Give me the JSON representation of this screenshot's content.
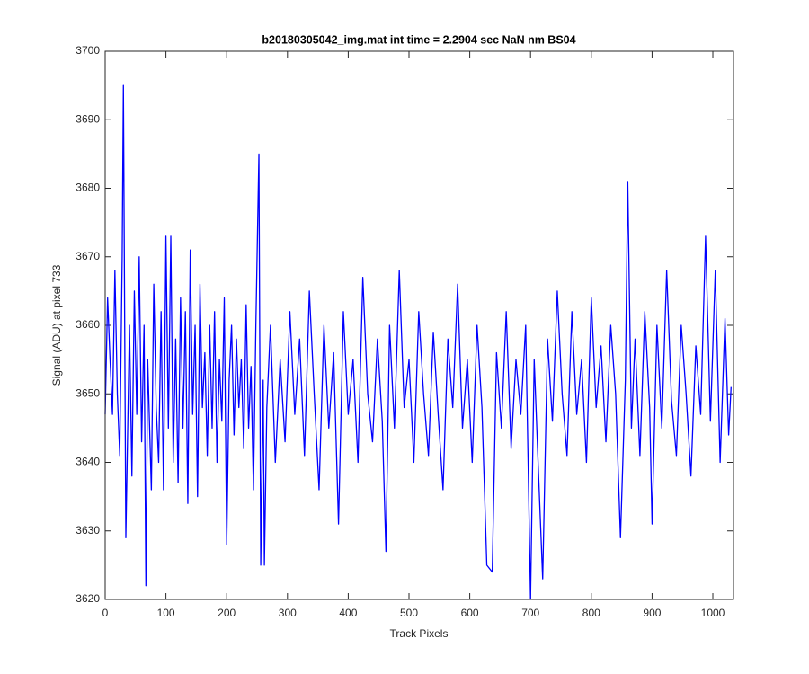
{
  "chart_data": {
    "type": "line",
    "title": "b20180305042_img.mat int time = 2.2904 sec  NaN nm BS04",
    "x_label": "Track Pixels",
    "y_label": "Signal (ADU) at pixel 733",
    "x": [
      0,
      4,
      8,
      12,
      16,
      20,
      24,
      28,
      30,
      34,
      40,
      44,
      48,
      52,
      56,
      60,
      64,
      67,
      70,
      76,
      80,
      84,
      88,
      92,
      96,
      100,
      104,
      108,
      112,
      116,
      120,
      124,
      128,
      132,
      136,
      140,
      144,
      148,
      152,
      156,
      160,
      164,
      168,
      172,
      176,
      180,
      184,
      188,
      192,
      196,
      200,
      204,
      208,
      212,
      216,
      220,
      224,
      228,
      232,
      236,
      240,
      244,
      248,
      253,
      256,
      260,
      262,
      266,
      272,
      280,
      288,
      296,
      304,
      312,
      320,
      328,
      336,
      344,
      352,
      360,
      368,
      376,
      384,
      392,
      400,
      408,
      416,
      424,
      432,
      440,
      448,
      456,
      462,
      468,
      476,
      484,
      492,
      500,
      508,
      516,
      524,
      532,
      540,
      548,
      556,
      564,
      572,
      580,
      588,
      596,
      604,
      612,
      620,
      628,
      637,
      644,
      652,
      660,
      668,
      676,
      684,
      692,
      700,
      706,
      712,
      720,
      728,
      736,
      744,
      752,
      760,
      768,
      776,
      784,
      792,
      800,
      808,
      816,
      824,
      832,
      840,
      848,
      856,
      860,
      866,
      872,
      880,
      888,
      896,
      900,
      908,
      916,
      924,
      932,
      940,
      948,
      956,
      964,
      972,
      980,
      988,
      996,
      1004,
      1012,
      1020,
      1026,
      1030
    ],
    "series": [
      {
        "color": "#0000ff",
        "values": [
          3647,
          3664,
          3655,
          3647,
          3668,
          3650,
          3641,
          3670,
          3695,
          3629,
          3660,
          3638,
          3665,
          3647,
          3670,
          3643,
          3660,
          3622,
          3655,
          3636,
          3666,
          3648,
          3640,
          3662,
          3636,
          3673,
          3645,
          3673,
          3640,
          3658,
          3637,
          3664,
          3645,
          3662,
          3634,
          3671,
          3647,
          3660,
          3635,
          3666,
          3648,
          3656,
          3641,
          3660,
          3645,
          3662,
          3640,
          3655,
          3646,
          3664,
          3628,
          3652,
          3660,
          3644,
          3658,
          3648,
          3655,
          3642,
          3663,
          3645,
          3654,
          3636,
          3660,
          3685,
          3625,
          3652,
          3625,
          3648,
          3660,
          3640,
          3655,
          3643,
          3662,
          3647,
          3658,
          3641,
          3665,
          3650,
          3636,
          3660,
          3645,
          3656,
          3631,
          3662,
          3647,
          3655,
          3640,
          3667,
          3650,
          3643,
          3658,
          3646,
          3627,
          3660,
          3645,
          3668,
          3648,
          3655,
          3640,
          3662,
          3650,
          3641,
          3659,
          3647,
          3636,
          3658,
          3648,
          3666,
          3645,
          3655,
          3640,
          3660,
          3648,
          3625,
          3624,
          3656,
          3645,
          3662,
          3642,
          3655,
          3647,
          3660,
          3620,
          3655,
          3641,
          3623,
          3658,
          3646,
          3665,
          3650,
          3641,
          3662,
          3647,
          3655,
          3640,
          3664,
          3648,
          3657,
          3643,
          3660,
          3650,
          3629,
          3652,
          3681,
          3645,
          3658,
          3641,
          3662,
          3648,
          3631,
          3660,
          3645,
          3668,
          3649,
          3641,
          3660,
          3650,
          3638,
          3657,
          3647,
          3673,
          3646,
          3668,
          3640,
          3661,
          3644,
          3651
        ]
      }
    ],
    "xlim": [
      0,
      1034
    ],
    "ylim": [
      3620,
      3700
    ],
    "xticks": [
      0,
      100,
      200,
      300,
      400,
      500,
      600,
      700,
      800,
      900,
      1000
    ],
    "yticks": [
      3620,
      3630,
      3640,
      3650,
      3660,
      3670,
      3680,
      3690,
      3700
    ]
  }
}
